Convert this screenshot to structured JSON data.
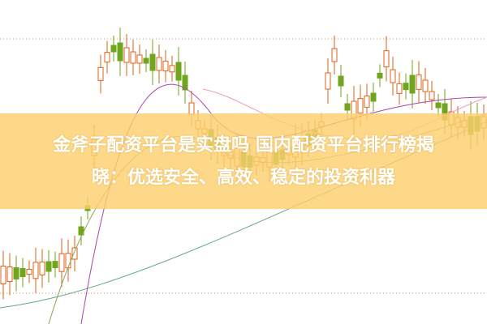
{
  "colors": {
    "up": "#e0601a",
    "down": "#6fa61c",
    "band": "#fdcf6e",
    "title": "#ffffff"
  },
  "article": {
    "title_line1": "金斧子配资平台是实盘吗 国内配资平台排行榜揭",
    "title_line2": "晓：优选安全、高效、稳定的投资利器"
  }
}
